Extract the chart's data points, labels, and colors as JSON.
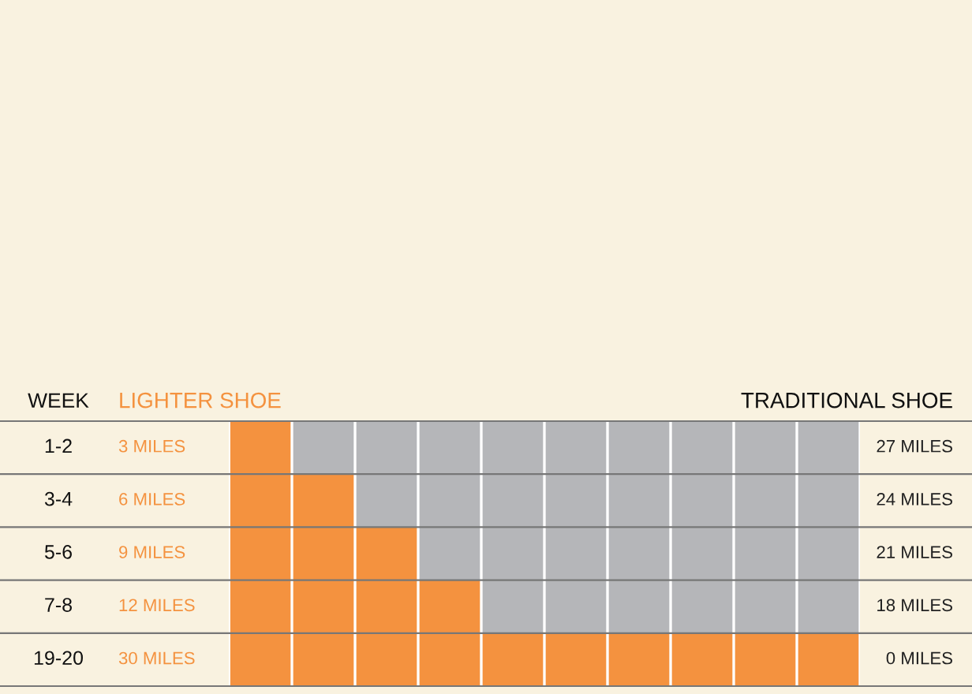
{
  "chart_data": {
    "type": "bar",
    "orientation": "horizontal",
    "stacked": true,
    "legend_title": "WEEK",
    "categories": [
      "1-2",
      "3-4",
      "5-6",
      "7-8",
      "19-20"
    ],
    "series": [
      {
        "name": "LIGHTER SHOE",
        "color": "#f4923f",
        "values": [
          3,
          6,
          9,
          12,
          30
        ],
        "value_labels": [
          "3 MILES",
          "6 MILES",
          "9 MILES",
          "12 MILES",
          "30 MILES"
        ]
      },
      {
        "name": "TRADITIONAL SHOE",
        "color": "#b5b6b9",
        "values": [
          27,
          24,
          21,
          18,
          0
        ],
        "value_labels": [
          "27 MILES",
          "24 MILES",
          "21 MILES",
          "18 MILES",
          "0 MILES"
        ]
      }
    ],
    "xlim": [
      0,
      30
    ],
    "xticks": [
      {
        "value": 0,
        "label": null
      },
      {
        "value": 3,
        "label": null
      },
      {
        "value": 6,
        "label": null
      },
      {
        "value": 9,
        "label": null
      },
      {
        "value": 12,
        "label": null
      },
      {
        "value": 15,
        "label": null
      },
      {
        "value": 18,
        "label": null
      },
      {
        "value": 21,
        "label": null
      },
      {
        "value": 24,
        "label": null
      },
      {
        "value": 27,
        "label": null
      },
      {
        "value": 30,
        "label": null
      }
    ],
    "grid": "x"
  }
}
